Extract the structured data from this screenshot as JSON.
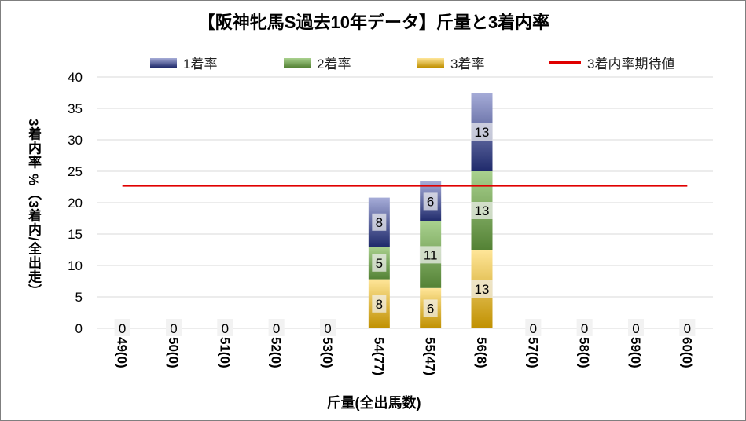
{
  "chart_data": {
    "type": "bar",
    "stacked": true,
    "title": "【阪神牝馬S過去10年データ】斤量と3着内率",
    "xlabel": "斤量(全出馬数)",
    "ylabel": "3着内率 %（3着内/全出走）",
    "ylim": [
      0,
      40
    ],
    "yticks": [
      0,
      5,
      10,
      15,
      20,
      25,
      30,
      35,
      40
    ],
    "grid": true,
    "legend_position": "top",
    "categories": [
      "49(0)",
      "50(0)",
      "51(0)",
      "52(0)",
      "53(0)",
      "54(77)",
      "55(47)",
      "56(8)",
      "57(0)",
      "58(0)",
      "59(0)",
      "60(0)"
    ],
    "series": [
      {
        "name": "3着率",
        "values": [
          0,
          0,
          0,
          0,
          0,
          7.8,
          6.4,
          12.5,
          0,
          0,
          0,
          0
        ],
        "labels": [
          "",
          "",
          "",
          "",
          "",
          "8",
          "6",
          "13",
          "",
          "",
          "",
          ""
        ],
        "color_light": "#ffe699",
        "color_dark": "#c09000"
      },
      {
        "name": "2着率",
        "values": [
          0,
          0,
          0,
          0,
          0,
          5.2,
          10.6,
          12.5,
          0,
          0,
          0,
          0
        ],
        "labels": [
          "",
          "",
          "",
          "",
          "",
          "5",
          "11",
          "13",
          "",
          "",
          "",
          ""
        ],
        "color_light": "#a9d18e",
        "color_dark": "#548235"
      },
      {
        "name": "1着率",
        "values": [
          0,
          0,
          0,
          0,
          0,
          7.8,
          6.4,
          12.5,
          0,
          0,
          0,
          0
        ],
        "labels": [
          "",
          "",
          "",
          "",
          "",
          "8",
          "6",
          "13",
          "",
          "",
          "",
          ""
        ],
        "color_light": "#a6acd8",
        "color_dark": "#1f2a6b"
      }
    ],
    "zero_labels": [
      "0",
      "0",
      "0",
      "0",
      "0",
      "",
      "",
      "",
      "0",
      "0",
      "0",
      "0"
    ],
    "reference_line": {
      "name": "3着内率期待値",
      "value": 22.7,
      "color": "#e00000"
    }
  },
  "legend": {
    "items": [
      "1着率",
      "2着率",
      "3着率",
      "3着内率期待値"
    ]
  }
}
